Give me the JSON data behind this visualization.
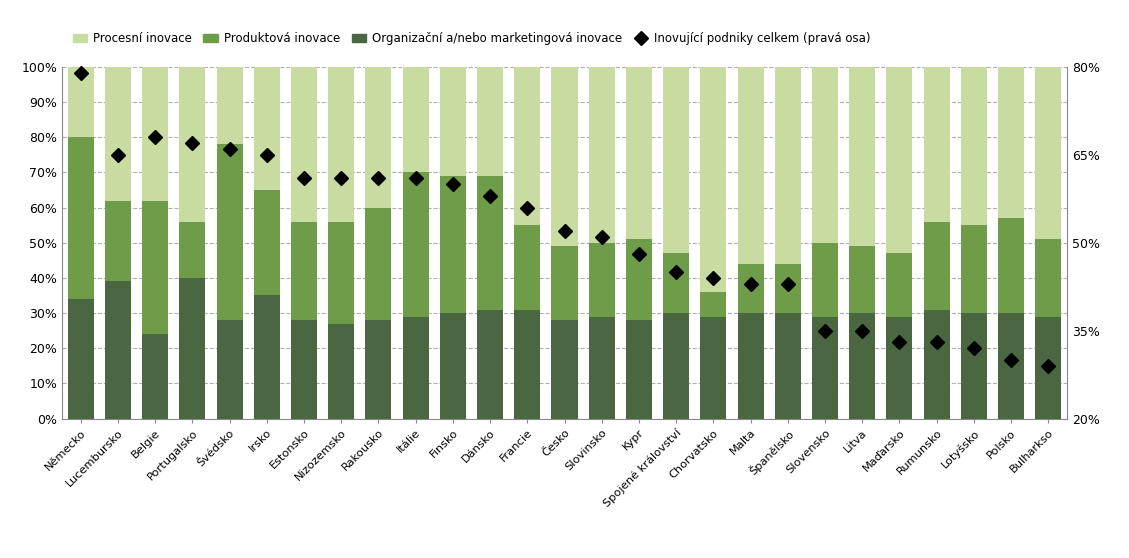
{
  "categories": [
    "Německo",
    "Lucembursko",
    "Belgie",
    "Portugalsko",
    "Švédsko",
    "Irsko",
    "Estonsko",
    "Nizozemsko",
    "Rakousko",
    "Itálie",
    "Finsko",
    "Dánsko",
    "Francie",
    "Česko",
    "Slovinsko",
    "Kypr",
    "Spojené království",
    "Chorvatsko",
    "Malta",
    "Španělsko",
    "Slovensko",
    "Litva",
    "Maďarsko",
    "Rumunsko",
    "Lotyšsko",
    "Polsko",
    "Bulharkso"
  ],
  "organizacni": [
    34,
    39,
    24,
    40,
    28,
    35,
    28,
    27,
    28,
    29,
    30,
    31,
    31,
    28,
    29,
    28,
    30,
    29,
    30,
    30,
    29,
    30,
    29,
    31,
    30,
    30,
    29
  ],
  "produktova": [
    46,
    23,
    38,
    16,
    50,
    30,
    28,
    29,
    32,
    41,
    39,
    38,
    24,
    21,
    21,
    23,
    17,
    7,
    14,
    14,
    21,
    19,
    18,
    25,
    25,
    27,
    22
  ],
  "procesni": [
    20,
    38,
    38,
    44,
    22,
    35,
    44,
    44,
    40,
    30,
    31,
    31,
    45,
    51,
    50,
    49,
    53,
    64,
    56,
    56,
    50,
    51,
    53,
    44,
    45,
    43,
    49
  ],
  "line_values": [
    79,
    65,
    68,
    67,
    66,
    65,
    61,
    61,
    61,
    61,
    60,
    58,
    56,
    52,
    51,
    48,
    45,
    44,
    43,
    43,
    35,
    35,
    33,
    33,
    32,
    30,
    29
  ],
  "color_org": "#4a6741",
  "color_prod": "#6e9c48",
  "color_proc": "#c8dba0",
  "color_line": "#1a1a1a",
  "ylim_left": [
    0,
    100
  ],
  "ylim_right": [
    20,
    80
  ],
  "yticks_left": [
    0,
    10,
    20,
    30,
    40,
    50,
    60,
    70,
    80,
    90,
    100
  ],
  "yticks_right": [
    20,
    35,
    50,
    65,
    80
  ],
  "legend_labels": [
    "Procesní inovace",
    "Produktová inovace",
    "Organizační a/nebo marketingová inovace",
    "Inovující podniky celkem (pravá osa)"
  ],
  "background_color": "#ffffff",
  "grid_color": "#b0b0b0"
}
